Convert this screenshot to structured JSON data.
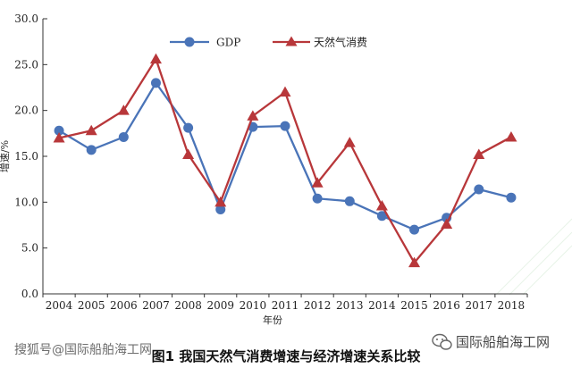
{
  "chart_data": {
    "type": "line",
    "x": [
      "2004",
      "2005",
      "2006",
      "2007",
      "2008",
      "2009",
      "2010",
      "2011",
      "2012",
      "2013",
      "2014",
      "2015",
      "2016",
      "2017",
      "2018"
    ],
    "series": [
      {
        "name": "GDP",
        "color": "#4a74b8",
        "marker": "circle",
        "values": [
          17.8,
          15.7,
          17.1,
          23.0,
          18.1,
          9.2,
          18.2,
          18.3,
          10.4,
          10.1,
          8.5,
          7.0,
          8.3,
          11.4,
          10.5
        ]
      },
      {
        "name": "天然气消费",
        "color": "#b8373a",
        "marker": "triangle",
        "values": [
          17.0,
          17.8,
          20.0,
          25.6,
          15.2,
          10.0,
          19.4,
          22.0,
          12.1,
          16.5,
          9.6,
          3.4,
          7.6,
          15.2,
          17.1
        ]
      }
    ],
    "yticks": [
      "0.0",
      "5.0",
      "10.0",
      "15.0",
      "20.0",
      "25.0",
      "30.0"
    ],
    "ylim": [
      0,
      30
    ],
    "xlabel": "年份",
    "ylabel": "增速/%",
    "legend_position": "top",
    "caption": "图1 我国天然气消费增速与经济增速关系比较"
  },
  "watermarks": {
    "left": "搜狐号@国际船舶海工网",
    "right": "国际船舶海工网",
    "right_icon": "wechat-icon"
  }
}
